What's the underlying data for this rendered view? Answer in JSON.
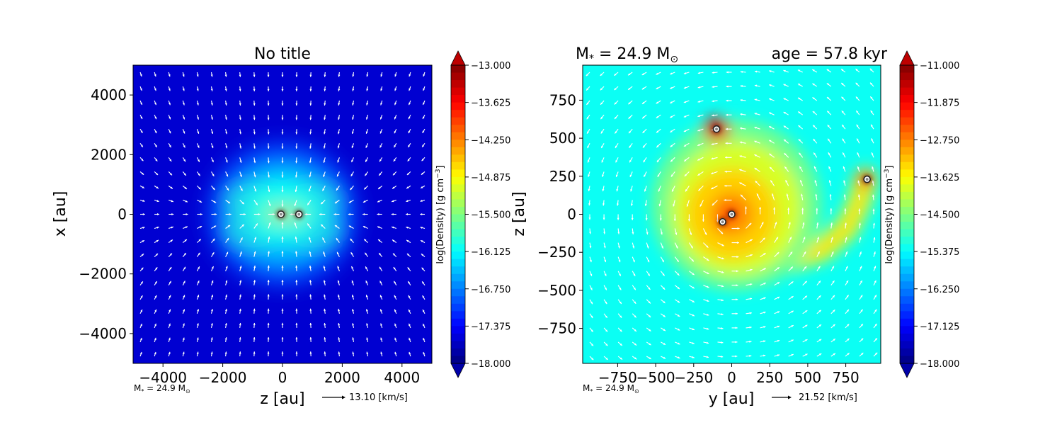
{
  "chart_data": [
    {
      "type": "heatmap",
      "title": "No title",
      "xlabel": "z [au]",
      "ylabel": "x [au]",
      "xlim": [
        -5000,
        5000
      ],
      "ylim": [
        -5000,
        5000
      ],
      "x_ticks": [
        -4000,
        -2000,
        0,
        2000,
        4000
      ],
      "y_ticks": [
        -4000,
        -2000,
        0,
        2000,
        4000
      ],
      "x_tick_labels": [
        "−4000",
        "−2000",
        "0",
        "2000",
        "4000"
      ],
      "y_tick_labels": [
        "−4000",
        "−2000",
        "0",
        "2000",
        "4000"
      ],
      "colorbar": {
        "label": "log(Density) [g cm$^{-3}$]",
        "label_main": "log(Density) [g cm",
        "label_sup": "−3",
        "label_end": "]",
        "min": -18.0,
        "max": -13.0,
        "colormap": "jet",
        "ticks": [
          -13.0,
          -13.625,
          -14.25,
          -14.875,
          -15.5,
          -16.125,
          -16.75,
          -17.375,
          -18.0
        ],
        "tick_labels": [
          "−13.000",
          "−13.625",
          "−14.250",
          "−14.875",
          "−15.500",
          "−16.125",
          "−16.750",
          "−17.375",
          "−18.000"
        ]
      },
      "background_level": -17.6,
      "density_features": [
        {
          "shape": "blob",
          "x": 0,
          "y": 0,
          "rx": 2500,
          "ry": 2400,
          "level": -17.0
        },
        {
          "shape": "blob",
          "x": 0,
          "y": 0,
          "rx": 1800,
          "ry": 1700,
          "level": -16.5
        },
        {
          "shape": "blob",
          "x": 0,
          "y": 100,
          "rx": 1200,
          "ry": 1100,
          "level": -16.1
        },
        {
          "shape": "ring",
          "x": -1000,
          "y": 500,
          "rx": 750,
          "ry": 350,
          "level": -15.9
        },
        {
          "shape": "ring",
          "x": 1000,
          "y": 500,
          "rx": 750,
          "ry": 350,
          "level": -15.9
        },
        {
          "shape": "ring",
          "x": -1000,
          "y": -550,
          "rx": 750,
          "ry": 380,
          "level": -15.9
        },
        {
          "shape": "ring",
          "x": 1000,
          "y": -550,
          "rx": 750,
          "ry": 380,
          "level": -15.9
        },
        {
          "shape": "blob",
          "x": 0,
          "y": 0,
          "rx": 700,
          "ry": 220,
          "level": -15.5
        },
        {
          "shape": "blob",
          "x": 100,
          "y": 0,
          "rx": 600,
          "ry": 110,
          "level": -14.6
        },
        {
          "shape": "blob",
          "x": 80,
          "y": 0,
          "rx": 480,
          "ry": 60,
          "level": -13.7
        },
        {
          "shape": "blob",
          "x": 80,
          "y": 0,
          "rx": 350,
          "ry": 35,
          "level": -13.2
        }
      ],
      "sinks": [
        {
          "x": -50,
          "y": 0
        },
        {
          "x": 550,
          "y": 0
        }
      ],
      "quiver_key": {
        "speed": 13.1,
        "label": "13.10 [km/s]"
      },
      "annotation": {
        "prefix": "M",
        "sub": "*",
        "middle": " = 24.9 M",
        "sun": "⊙"
      }
    },
    {
      "type": "heatmap",
      "title": "",
      "title_left": {
        "prefix": "M",
        "sub": "*",
        "middle": " = 24.9 M",
        "sun": "⊙"
      },
      "title_right": "age = 57.8 kyr",
      "xlabel": "y [au]",
      "ylabel": "z [au]",
      "xlim": [
        -980,
        980
      ],
      "ylim": [
        -980,
        980
      ],
      "x_ticks": [
        -750,
        -500,
        -250,
        0,
        250,
        500,
        750
      ],
      "y_ticks": [
        -750,
        -500,
        -250,
        0,
        250,
        500,
        750
      ],
      "x_tick_labels": [
        "−750",
        "−500",
        "−250",
        "0",
        "250",
        "500",
        "750"
      ],
      "y_tick_labels": [
        "−750",
        "−500",
        "−250",
        "0",
        "250",
        "500",
        "750"
      ],
      "colorbar": {
        "label": "log(Density) [g cm$^{-3}$]",
        "label_main": "log(Density) [g cm",
        "label_sup": "−3",
        "label_end": "]",
        "min": -18.0,
        "max": -11.0,
        "colormap": "jet",
        "ticks": [
          -11.0,
          -11.875,
          -12.75,
          -13.625,
          -14.5,
          -15.375,
          -16.25,
          -17.125,
          -18.0
        ],
        "tick_labels": [
          "−11.000",
          "−11.875",
          "−12.750",
          "−13.625",
          "−14.500",
          "−15.375",
          "−16.250",
          "−17.125",
          "−18.000"
        ]
      },
      "background_level": -15.3,
      "density_features": [
        {
          "shape": "blob",
          "x": 30,
          "y": 60,
          "rx": 560,
          "ry": 560,
          "level": -14.6
        },
        {
          "shape": "blob",
          "x": 30,
          "y": 40,
          "rx": 430,
          "ry": 440,
          "level": -13.9
        },
        {
          "shape": "blob",
          "x": 0,
          "y": 0,
          "rx": 300,
          "ry": 300,
          "level": -13.3
        },
        {
          "shape": "blob",
          "x": 0,
          "y": 0,
          "rx": 150,
          "ry": 150,
          "level": -12.9
        },
        {
          "shape": "blob",
          "x": -10,
          "y": 10,
          "rx": 55,
          "ry": 55,
          "level": -12.0
        },
        {
          "shape": "blob",
          "x": -60,
          "y": -50,
          "rx": 35,
          "ry": 35,
          "level": -12.0
        },
        {
          "shape": "blob",
          "x": -100,
          "y": 560,
          "rx": 90,
          "ry": 80,
          "level": -11.8
        },
        {
          "shape": "blob",
          "x": -100,
          "y": 560,
          "rx": 45,
          "ry": 40,
          "level": -11.2
        },
        {
          "shape": "blob",
          "x": 880,
          "y": 230,
          "rx": 60,
          "ry": 55,
          "level": -12.4
        }
      ],
      "density_streams": [
        {
          "path": [
            [
              -100,
              560
            ],
            [
              -40,
              470
            ],
            [
              60,
              340
            ],
            [
              120,
              180
            ],
            [
              100,
              40
            ],
            [
              20,
              -60
            ],
            [
              -100,
              -40
            ],
            [
              -160,
              60
            ],
            [
              -120,
              200
            ],
            [
              0,
              260
            ],
            [
              130,
              200
            ],
            [
              180,
              60
            ]
          ],
          "width": 150,
          "level": -13.6
        },
        {
          "path": [
            [
              0,
              0
            ],
            [
              40,
              -150
            ],
            [
              180,
              -270
            ],
            [
              400,
              -300
            ],
            [
              600,
              -230
            ],
            [
              760,
              -90
            ],
            [
              840,
              80
            ],
            [
              880,
              230
            ]
          ],
          "width": 160,
          "level": -14.0
        },
        {
          "path": [
            [
              0,
              0
            ],
            [
              40,
              -150
            ],
            [
              180,
              -270
            ],
            [
              400,
              -300
            ],
            [
              600,
              -230
            ],
            [
              760,
              -90
            ],
            [
              840,
              80
            ],
            [
              880,
              230
            ]
          ],
          "width": 70,
          "level": -13.4
        }
      ],
      "sinks": [
        {
          "x": -100,
          "y": 560
        },
        {
          "x": 890,
          "y": 230
        },
        {
          "x": 0,
          "y": 0
        },
        {
          "x": -60,
          "y": -50
        }
      ],
      "quiver_key": {
        "speed": 21.52,
        "label": "21.52 [km/s]"
      },
      "annotation": {
        "prefix": "M",
        "sub": "*",
        "middle": " = 24.9 M",
        "sun": "⊙"
      }
    }
  ]
}
